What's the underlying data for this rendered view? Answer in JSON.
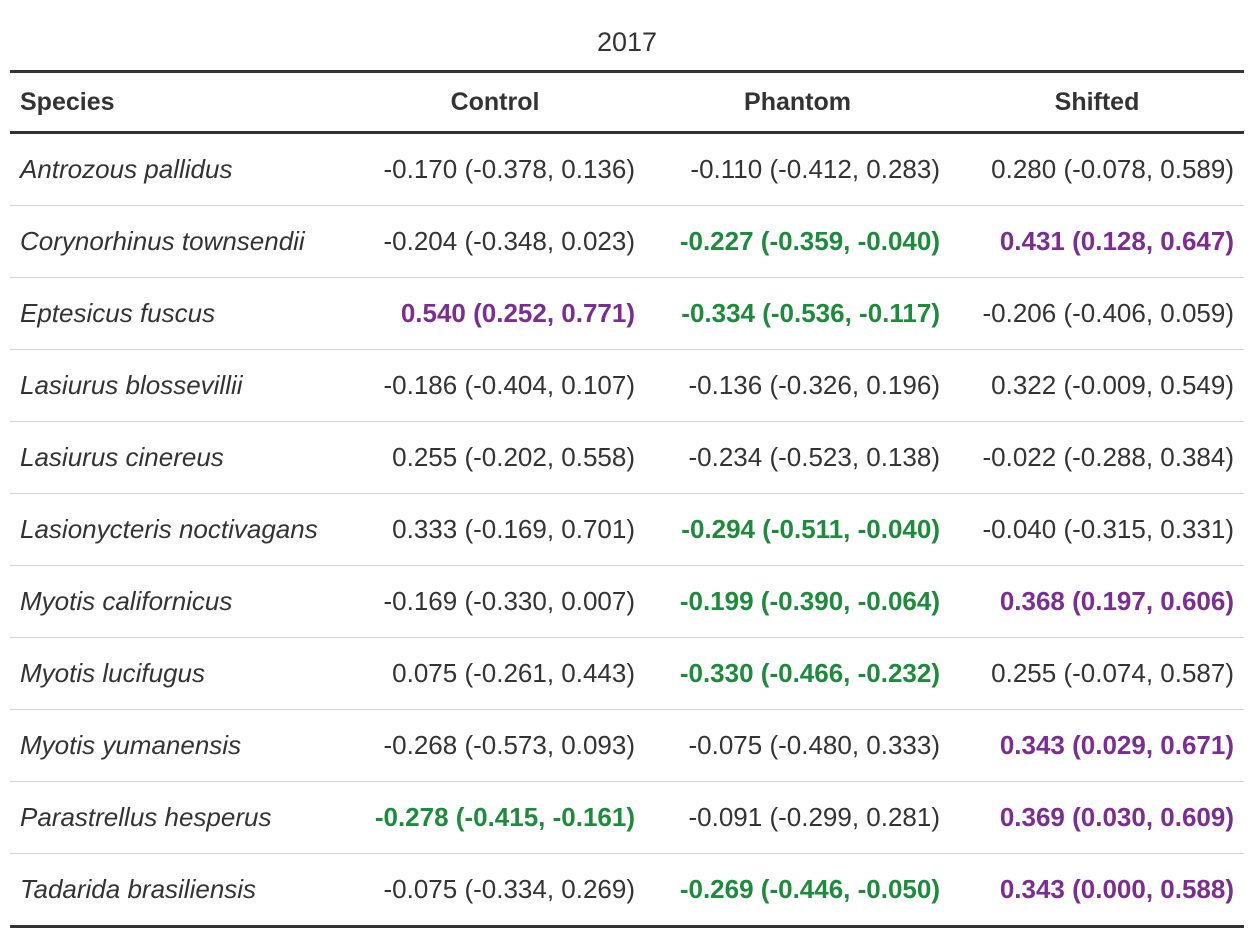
{
  "title": "2017",
  "table": {
    "header": [
      "Species",
      "Control",
      "Phantom",
      "Shifted"
    ],
    "rows": [
      {
        "species": "Antrozous pallidus",
        "cells": [
          "-0.170 (-0.378, 0.136)",
          "-0.110 (-0.412, 0.283)",
          "0.280 (-0.078, 0.589)"
        ]
      },
      {
        "species": "Corynorhinus townsendii",
        "cells": [
          "-0.204 (-0.348, 0.023)",
          {
            "text": "-0.227 (-0.359, -0.040)",
            "color": "#1e8a3c"
          },
          {
            "text": "0.431 (0.128, 0.647)",
            "color": "#7b2d91"
          }
        ]
      },
      {
        "species": "Eptesicus fuscus",
        "cells": [
          {
            "text": "0.540 (0.252, 0.771)",
            "color": "#7b2d91"
          },
          {
            "text": "-0.334 (-0.536, -0.117)",
            "color": "#1e8a3c"
          },
          "-0.206 (-0.406, 0.059)"
        ]
      },
      {
        "species": "Lasiurus blossevillii",
        "cells": [
          "-0.186 (-0.404, 0.107)",
          "-0.136 (-0.326, 0.196)",
          "0.322 (-0.009, 0.549)"
        ]
      },
      {
        "species": "Lasiurus cinereus",
        "cells": [
          "0.255 (-0.202, 0.558)",
          "-0.234 (-0.523, 0.138)",
          "-0.022 (-0.288, 0.384)"
        ]
      },
      {
        "species": "Lasionycteris noctivagans",
        "cells": [
          "0.333 (-0.169, 0.701)",
          {
            "text": "-0.294 (-0.511, -0.040)",
            "color": "#1e8a3c"
          },
          "-0.040 (-0.315, 0.331)"
        ]
      },
      {
        "species": "Myotis californicus",
        "cells": [
          "-0.169 (-0.330, 0.007)",
          {
            "text": "-0.199 (-0.390, -0.064)",
            "color": "#1e8a3c"
          },
          {
            "text": "0.368 (0.197, 0.606)",
            "color": "#7b2d91"
          }
        ]
      },
      {
        "species": "Myotis lucifugus",
        "cells": [
          "0.075 (-0.261, 0.443)",
          {
            "text": "-0.330 (-0.466, -0.232)",
            "color": "#1e8a3c"
          },
          "0.255 (-0.074, 0.587)"
        ]
      },
      {
        "species": "Myotis yumanensis",
        "cells": [
          "-0.268 (-0.573, 0.093)",
          "-0.075 (-0.480, 0.333)",
          {
            "text": "0.343 (0.029, 0.671)",
            "color": "#7b2d91"
          }
        ]
      },
      {
        "species": "Parastrellus hesperus",
        "cells": [
          {
            "text": "-0.278 (-0.415, -0.161)",
            "color": "#1e8a3c"
          },
          "-0.091 (-0.299, 0.281)",
          {
            "text": "0.369 (0.030, 0.609)",
            "color": "#7b2d91"
          }
        ]
      },
      {
        "species": "Tadarida brasiliensis",
        "cells": [
          "-0.075 (-0.334, 0.269)",
          {
            "text": "-0.269 (-0.446, -0.050)",
            "color": "#1e8a3c"
          },
          {
            "text": "0.343 (0.000, 0.588)",
            "color": "#7b2d91"
          }
        ]
      }
    ]
  }
}
